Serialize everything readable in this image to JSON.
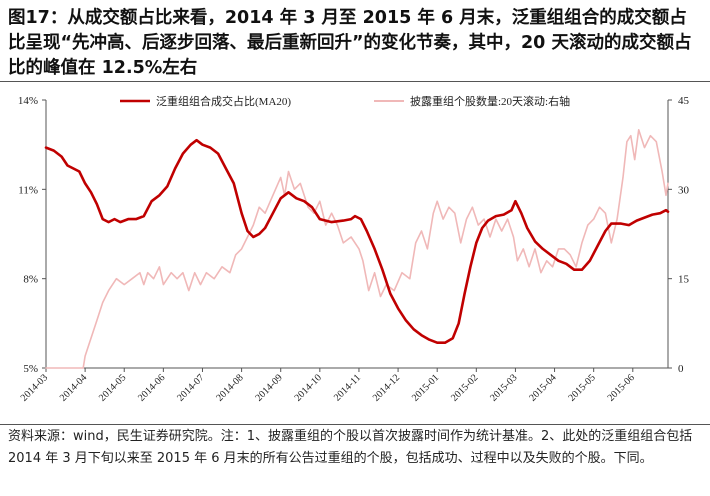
{
  "title": "图17：从成交额占比来看，2014 年 3 月至 2015 年 6 月末，泛重组组合的成交额占比呈现“先冲高、后逐步回落、最后重新回升”的变化节奏，其中，20 天滚动的成交额占比的峰值在 12.5%左右",
  "footer": "资料来源：wind，民生证券研究院。注：1、披露重组的个股以首次披露时间作为统计基准。2、此处的泛重组组合包括 2014 年 3 月下旬以来至 2015 年 6 月末的所有公告过重组的个股，包括成功、过程中以及失败的个股。下同。",
  "colors": {
    "share_line": "#c00000",
    "count_line": "#f0b8b8",
    "axis": "#555555"
  },
  "chart_data": {
    "type": "line",
    "y_left": {
      "ticks": [
        "5%",
        "8%",
        "11%",
        "14%"
      ],
      "range": [
        5,
        14
      ]
    },
    "y_right": {
      "ticks": [
        "0",
        "15",
        "30",
        "45"
      ],
      "range": [
        0,
        45
      ]
    },
    "x_ticks": [
      "2014-03",
      "2014-04",
      "2014-05",
      "2014-06",
      "2014-07",
      "2014-08",
      "2014-09",
      "2014-10",
      "2014-11",
      "2014-12",
      "2015-01",
      "2015-02",
      "2015-03",
      "2015-04",
      "2015-05",
      "2015-06"
    ],
    "x_range": [
      0,
      15.9
    ],
    "series": [
      {
        "name": "泛重组组合成交占比(MA20)",
        "axis": "left",
        "points": [
          [
            0,
            12.4
          ],
          [
            0.2,
            12.3
          ],
          [
            0.4,
            12.1
          ],
          [
            0.55,
            11.8
          ],
          [
            0.7,
            11.7
          ],
          [
            0.85,
            11.6
          ],
          [
            1.0,
            11.2
          ],
          [
            1.15,
            10.9
          ],
          [
            1.3,
            10.5
          ],
          [
            1.45,
            10.0
          ],
          [
            1.6,
            9.9
          ],
          [
            1.75,
            10.0
          ],
          [
            1.9,
            9.9
          ],
          [
            2.1,
            10.0
          ],
          [
            2.3,
            10.0
          ],
          [
            2.5,
            10.1
          ],
          [
            2.7,
            10.6
          ],
          [
            2.9,
            10.8
          ],
          [
            3.1,
            11.1
          ],
          [
            3.3,
            11.7
          ],
          [
            3.5,
            12.2
          ],
          [
            3.7,
            12.5
          ],
          [
            3.85,
            12.65
          ],
          [
            4.0,
            12.5
          ],
          [
            4.2,
            12.4
          ],
          [
            4.4,
            12.2
          ],
          [
            4.6,
            11.7
          ],
          [
            4.8,
            11.2
          ],
          [
            5.0,
            10.2
          ],
          [
            5.15,
            9.6
          ],
          [
            5.3,
            9.4
          ],
          [
            5.45,
            9.5
          ],
          [
            5.6,
            9.7
          ],
          [
            5.8,
            10.2
          ],
          [
            6.0,
            10.7
          ],
          [
            6.2,
            10.9
          ],
          [
            6.4,
            10.7
          ],
          [
            6.6,
            10.6
          ],
          [
            6.8,
            10.4
          ],
          [
            7.0,
            10.0
          ],
          [
            7.3,
            9.9
          ],
          [
            7.6,
            9.95
          ],
          [
            7.8,
            10.0
          ],
          [
            7.9,
            10.1
          ],
          [
            8.05,
            10.0
          ],
          [
            8.2,
            9.6
          ],
          [
            8.4,
            9.0
          ],
          [
            8.6,
            8.3
          ],
          [
            8.8,
            7.5
          ],
          [
            9.0,
            7.0
          ],
          [
            9.2,
            6.6
          ],
          [
            9.4,
            6.3
          ],
          [
            9.6,
            6.1
          ],
          [
            9.8,
            5.95
          ],
          [
            10.0,
            5.85
          ],
          [
            10.2,
            5.85
          ],
          [
            10.4,
            6.0
          ],
          [
            10.55,
            6.5
          ],
          [
            10.7,
            7.5
          ],
          [
            10.85,
            8.4
          ],
          [
            11.0,
            9.2
          ],
          [
            11.15,
            9.7
          ],
          [
            11.3,
            9.95
          ],
          [
            11.5,
            10.1
          ],
          [
            11.7,
            10.15
          ],
          [
            11.9,
            10.3
          ],
          [
            12.0,
            10.6
          ],
          [
            12.15,
            10.2
          ],
          [
            12.3,
            9.7
          ],
          [
            12.5,
            9.25
          ],
          [
            12.7,
            9.0
          ],
          [
            12.9,
            8.8
          ],
          [
            13.1,
            8.6
          ],
          [
            13.3,
            8.5
          ],
          [
            13.5,
            8.3
          ],
          [
            13.7,
            8.3
          ],
          [
            13.9,
            8.6
          ],
          [
            14.1,
            9.1
          ],
          [
            14.3,
            9.6
          ],
          [
            14.45,
            9.85
          ],
          [
            14.7,
            9.85
          ],
          [
            14.9,
            9.8
          ],
          [
            15.1,
            9.95
          ],
          [
            15.3,
            10.05
          ],
          [
            15.5,
            10.15
          ],
          [
            15.7,
            10.2
          ],
          [
            15.85,
            10.3
          ],
          [
            15.9,
            10.25
          ]
        ]
      },
      {
        "name": "披露重组个股数量:20天滚动:右轴",
        "axis": "right",
        "points": [
          [
            0,
            0
          ],
          [
            0.6,
            0
          ],
          [
            0.95,
            0
          ],
          [
            1.0,
            2
          ],
          [
            1.1,
            4
          ],
          [
            1.3,
            8
          ],
          [
            1.45,
            11
          ],
          [
            1.6,
            13
          ],
          [
            1.8,
            15
          ],
          [
            2.0,
            14
          ],
          [
            2.2,
            15
          ],
          [
            2.4,
            16
          ],
          [
            2.5,
            14
          ],
          [
            2.6,
            16
          ],
          [
            2.75,
            15
          ],
          [
            2.9,
            17
          ],
          [
            3.0,
            14
          ],
          [
            3.2,
            16
          ],
          [
            3.35,
            15
          ],
          [
            3.5,
            16
          ],
          [
            3.65,
            13
          ],
          [
            3.8,
            16
          ],
          [
            3.95,
            14
          ],
          [
            4.1,
            16
          ],
          [
            4.3,
            15
          ],
          [
            4.5,
            17
          ],
          [
            4.7,
            16
          ],
          [
            4.85,
            19
          ],
          [
            5.0,
            20
          ],
          [
            5.15,
            22
          ],
          [
            5.3,
            24
          ],
          [
            5.45,
            27
          ],
          [
            5.6,
            26
          ],
          [
            5.8,
            29
          ],
          [
            6.0,
            32
          ],
          [
            6.1,
            29
          ],
          [
            6.2,
            33
          ],
          [
            6.35,
            30
          ],
          [
            6.5,
            31
          ],
          [
            6.7,
            27
          ],
          [
            6.85,
            26
          ],
          [
            7.0,
            28
          ],
          [
            7.15,
            24
          ],
          [
            7.3,
            26
          ],
          [
            7.45,
            24
          ],
          [
            7.6,
            21
          ],
          [
            7.8,
            22
          ],
          [
            8.0,
            20
          ],
          [
            8.1,
            18
          ],
          [
            8.25,
            13
          ],
          [
            8.4,
            16
          ],
          [
            8.55,
            12
          ],
          [
            8.7,
            14
          ],
          [
            8.9,
            13
          ],
          [
            9.1,
            16
          ],
          [
            9.3,
            15
          ],
          [
            9.45,
            21
          ],
          [
            9.6,
            23
          ],
          [
            9.75,
            20
          ],
          [
            9.9,
            26
          ],
          [
            10.0,
            28
          ],
          [
            10.15,
            25
          ],
          [
            10.3,
            27
          ],
          [
            10.45,
            26
          ],
          [
            10.6,
            21
          ],
          [
            10.75,
            25
          ],
          [
            10.9,
            27
          ],
          [
            11.05,
            24
          ],
          [
            11.2,
            25
          ],
          [
            11.35,
            22
          ],
          [
            11.5,
            25
          ],
          [
            11.65,
            23
          ],
          [
            11.8,
            25
          ],
          [
            11.95,
            22
          ],
          [
            12.05,
            18
          ],
          [
            12.2,
            20
          ],
          [
            12.35,
            17
          ],
          [
            12.5,
            20
          ],
          [
            12.65,
            16
          ],
          [
            12.8,
            18
          ],
          [
            12.95,
            17
          ],
          [
            13.1,
            20
          ],
          [
            13.25,
            20
          ],
          [
            13.4,
            19
          ],
          [
            13.55,
            17
          ],
          [
            13.7,
            21
          ],
          [
            13.85,
            24
          ],
          [
            14.0,
            25
          ],
          [
            14.15,
            27
          ],
          [
            14.3,
            26
          ],
          [
            14.45,
            21
          ],
          [
            14.6,
            25
          ],
          [
            14.75,
            32
          ],
          [
            14.85,
            38
          ],
          [
            14.95,
            39
          ],
          [
            15.05,
            35
          ],
          [
            15.15,
            40
          ],
          [
            15.3,
            37
          ],
          [
            15.45,
            39
          ],
          [
            15.6,
            38
          ],
          [
            15.75,
            33
          ],
          [
            15.85,
            29
          ],
          [
            15.9,
            31
          ]
        ]
      }
    ]
  }
}
